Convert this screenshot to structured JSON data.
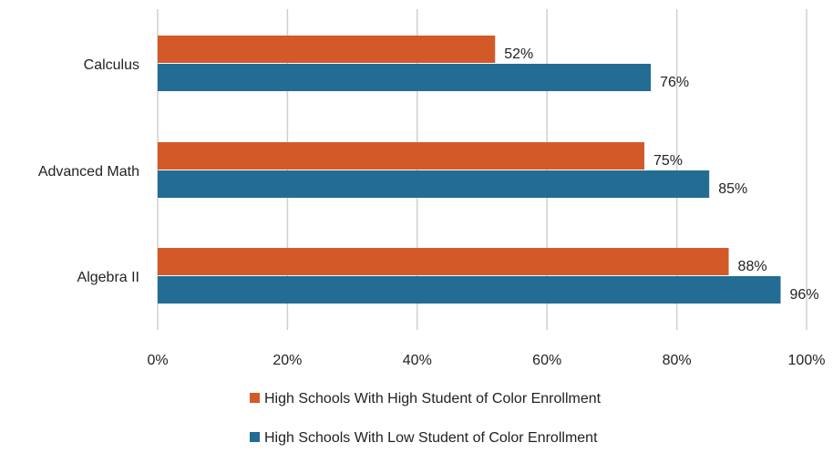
{
  "chart_data": {
    "type": "bar",
    "orientation": "horizontal",
    "categories": [
      "Calculus",
      "Advanced Math",
      "Algebra II"
    ],
    "series": [
      {
        "name": "High Schools With High Student of Color Enrollment",
        "values": [
          52,
          75,
          88
        ],
        "color": "#d35a28"
      },
      {
        "name": "High Schools With Low Student of Color Enrollment",
        "values": [
          76,
          85,
          96
        ],
        "color": "#236c93"
      }
    ],
    "data_labels": [
      [
        "52%",
        "75%",
        "88%"
      ],
      [
        "76%",
        "85%",
        "96%"
      ]
    ],
    "x_ticks": [
      "0%",
      "20%",
      "40%",
      "60%",
      "80%",
      "100%"
    ],
    "xlim": [
      0,
      100
    ],
    "grid": "vertical",
    "legend_position": "bottom",
    "title": "",
    "xlabel": "",
    "ylabel": ""
  }
}
